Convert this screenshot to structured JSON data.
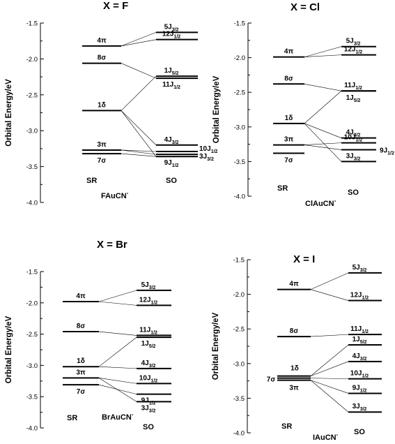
{
  "panels": [
    {
      "title": "X = F",
      "ylabel": "Orbital Energy/eV",
      "yticks": [
        "-1.5",
        "-2.0",
        "-2.5",
        "-3.0",
        "-3.5",
        "-4.0"
      ],
      "ylim": [
        -4.0,
        -1.5
      ],
      "sr_label": "SR",
      "so_label": "SO",
      "molecule": {
        "main": "FAuCN",
        "sup": "-"
      },
      "sr_levels": [
        {
          "id": "4pi",
          "label": "4π",
          "energy": -1.82
        },
        {
          "id": "8sigma",
          "label": "8σ",
          "energy": -2.06
        },
        {
          "id": "1delta",
          "label": "1δ",
          "energy": -2.72
        },
        {
          "id": "3pi",
          "label": "3π",
          "energy": -3.27
        },
        {
          "id": "7sigma",
          "label": "7σ",
          "energy": -3.32
        }
      ],
      "so_levels": [
        {
          "id": "5J32",
          "main": "5J",
          "sub": "3/2",
          "energy": -1.63
        },
        {
          "id": "12J12",
          "main": "12J",
          "sub": "1/2",
          "energy": -1.73
        },
        {
          "id": "1J52",
          "main": "1J",
          "sub": "5/2",
          "energy": -2.24
        },
        {
          "id": "11J12",
          "main": "11J",
          "sub": "1/2",
          "energy": -2.27
        },
        {
          "id": "4J32",
          "main": "4J",
          "sub": "3/2",
          "energy": -3.2
        },
        {
          "id": "10J12",
          "main": "10J",
          "sub": "1/2",
          "energy": -3.29
        },
        {
          "id": "3J32",
          "main": "3J",
          "sub": "3/2",
          "energy": -3.33
        },
        {
          "id": "9J12",
          "main": "9J",
          "sub": "1/2",
          "energy": -3.36
        }
      ],
      "correlations": [
        [
          "4pi",
          "5J32"
        ],
        [
          "4pi",
          "12J12"
        ],
        [
          "8sigma",
          "11J12"
        ],
        [
          "1delta",
          "1J52"
        ],
        [
          "1delta",
          "4J32"
        ],
        [
          "1delta",
          "9J12"
        ],
        [
          "3pi",
          "10J12"
        ],
        [
          "3pi",
          "3J32"
        ],
        [
          "7sigma",
          "9J12"
        ]
      ]
    },
    {
      "title": "X = Cl",
      "ylabel": "Orbital Energy/eV",
      "yticks": [
        "-1.5",
        "-2.0",
        "-2.5",
        "-3.0",
        "-3.5",
        "-4.0"
      ],
      "ylim": [
        -4.0,
        -1.5
      ],
      "sr_label": "SR",
      "so_label": "SO",
      "molecule": {
        "main": "ClAuCN",
        "sup": "-"
      },
      "sr_levels": [
        {
          "id": "4pi",
          "label": "4π",
          "energy": -1.99
        },
        {
          "id": "8sigma",
          "label": "8σ",
          "energy": -2.38
        },
        {
          "id": "1delta",
          "label": "1δ",
          "energy": -2.95
        },
        {
          "id": "3pi",
          "label": "3π",
          "energy": -3.26
        },
        {
          "id": "7sigma",
          "label": "7σ",
          "energy": -3.38
        }
      ],
      "so_levels": [
        {
          "id": "5J32",
          "main": "5J",
          "sub": "3/2",
          "energy": -1.84
        },
        {
          "id": "12J12",
          "main": "12J",
          "sub": "1/2",
          "energy": -1.96
        },
        {
          "id": "11J12",
          "main": "11J",
          "sub": "1/2",
          "energy": -2.48
        },
        {
          "id": "1J52",
          "main": "1J",
          "sub": "5/2",
          "energy": -2.48
        },
        {
          "id": "4J32",
          "main": "4J",
          "sub": "3/2",
          "energy": -3.16
        },
        {
          "id": "10J12",
          "main": "10J",
          "sub": "1/2",
          "energy": -3.23
        },
        {
          "id": "9J12",
          "main": "9J",
          "sub": "1/2",
          "energy": -3.33
        },
        {
          "id": "3J32",
          "main": "3J",
          "sub": "3/2",
          "energy": -3.5
        }
      ],
      "correlations": [
        [
          "4pi",
          "5J32"
        ],
        [
          "4pi",
          "12J12"
        ],
        [
          "8sigma",
          "11J12"
        ],
        [
          "1delta",
          "1J52"
        ],
        [
          "1delta",
          "4J32"
        ],
        [
          "1delta",
          "3J32"
        ],
        [
          "3pi",
          "10J12"
        ],
        [
          "3pi",
          "9J12"
        ]
      ]
    },
    {
      "title": "X = Br",
      "ylabel": "Orbital Energy/eV",
      "yticks": [
        "-1.5",
        "-2.0",
        "-2.5",
        "-3.0",
        "-3.5",
        "-4.0"
      ],
      "ylim": [
        -4.0,
        -1.5
      ],
      "sr_label": "SR",
      "so_label": "SO",
      "molecule": {
        "main": "BrAuCN",
        "sup": "-"
      },
      "sr_levels": [
        {
          "id": "4pi",
          "label": "4π",
          "energy": -1.98
        },
        {
          "id": "8sigma",
          "label": "8σ",
          "energy": -2.46
        },
        {
          "id": "1delta",
          "label": "1δ",
          "energy": -3.02
        },
        {
          "id": "3pi",
          "label": "3π",
          "energy": -3.2
        },
        {
          "id": "7sigma",
          "label": "7σ",
          "energy": -3.31
        }
      ],
      "so_levels": [
        {
          "id": "5J32",
          "main": "5J",
          "sub": "3/2",
          "energy": -1.8
        },
        {
          "id": "12J12",
          "main": "12J",
          "sub": "1/2",
          "energy": -2.04
        },
        {
          "id": "11J12",
          "main": "11J",
          "sub": "1/2",
          "energy": -2.52
        },
        {
          "id": "1J52",
          "main": "1J",
          "sub": "5/2",
          "energy": -2.55
        },
        {
          "id": "4J32",
          "main": "4J",
          "sub": "3/2",
          "energy": -3.05
        },
        {
          "id": "10J12",
          "main": "10J",
          "sub": "1/2",
          "energy": -3.29
        },
        {
          "id": "9J12",
          "main": "9J",
          "sub": "1/2",
          "energy": -3.46
        },
        {
          "id": "3J32",
          "main": "3J",
          "sub": "3/2",
          "energy": -3.58
        }
      ],
      "correlations": [
        [
          "4pi",
          "5J32"
        ],
        [
          "4pi",
          "12J12"
        ],
        [
          "8sigma",
          "11J12"
        ],
        [
          "1delta",
          "1J52"
        ],
        [
          "1delta",
          "4J32"
        ],
        [
          "3pi",
          "10J12"
        ],
        [
          "3pi",
          "3J32"
        ],
        [
          "7sigma",
          "9J12"
        ]
      ]
    },
    {
      "title": "X = I",
      "ylabel": "Orbital Energy/eV",
      "yticks": [
        "-1.5",
        "-2.0",
        "-2.5",
        "-3.0",
        "-3.5",
        "-4.0"
      ],
      "ylim": [
        -4.0,
        -1.5
      ],
      "sr_label": "SR",
      "so_label": "SO",
      "molecule": {
        "main": "IAuCN",
        "sup": "-"
      },
      "sr_levels": [
        {
          "id": "4pi",
          "label": "4π",
          "energy": -1.93
        },
        {
          "id": "8sigma",
          "label": "8σ",
          "energy": -2.61
        },
        {
          "id": "1delta",
          "label": "1δ",
          "energy": -3.18
        },
        {
          "id": "7sigma",
          "label": "7σ",
          "energy": -3.21
        },
        {
          "id": "3pi",
          "label": "3π",
          "energy": -3.24
        }
      ],
      "so_levels": [
        {
          "id": "5J32",
          "main": "5J",
          "sub": "3/2",
          "energy": -1.69
        },
        {
          "id": "12J12",
          "main": "12J",
          "sub": "1/2",
          "energy": -2.09
        },
        {
          "id": "11J12",
          "main": "11J",
          "sub": "1/2",
          "energy": -2.58
        },
        {
          "id": "1J52",
          "main": "1J",
          "sub": "5/2",
          "energy": -2.73
        },
        {
          "id": "4J32",
          "main": "4J",
          "sub": "3/2",
          "energy": -2.97
        },
        {
          "id": "10J12",
          "main": "10J",
          "sub": "1/2",
          "energy": -3.22
        },
        {
          "id": "9J12",
          "main": "9J",
          "sub": "1/2",
          "energy": -3.43
        },
        {
          "id": "3J32",
          "main": "3J",
          "sub": "3/2",
          "energy": -3.7
        }
      ],
      "correlations": [
        [
          "4pi",
          "5J32"
        ],
        [
          "4pi",
          "12J12"
        ],
        [
          "8sigma",
          "11J12"
        ],
        [
          "1delta",
          "1J52"
        ],
        [
          "1delta",
          "4J32"
        ],
        [
          "7sigma",
          "10J12"
        ],
        [
          "3pi",
          "9J12"
        ],
        [
          "3pi",
          "3J32"
        ]
      ]
    }
  ]
}
